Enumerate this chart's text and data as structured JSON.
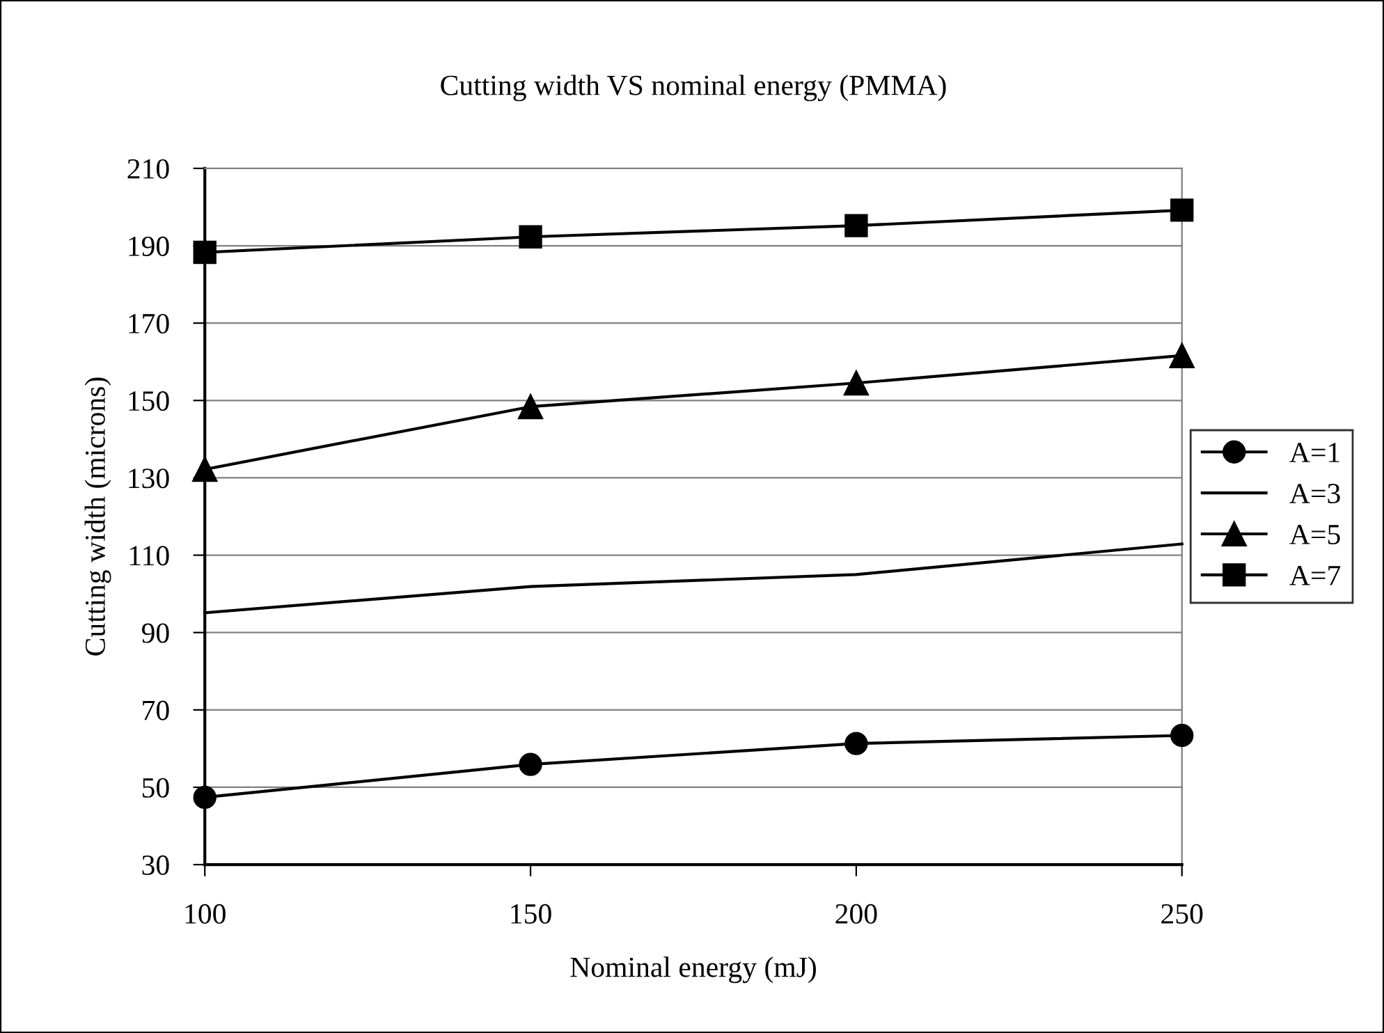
{
  "chart_data": {
    "type": "line",
    "title": "Cutting width VS nominal energy (PMMA)",
    "xlabel": "Nominal energy (mJ)",
    "ylabel": "Cutting width (microns)",
    "x": [
      100,
      150,
      200,
      250
    ],
    "series": [
      {
        "name": "A=1",
        "color": "#000000",
        "marker": "circle",
        "values": [
          47.4,
          55.9,
          61.3,
          63.4
        ]
      },
      {
        "name": "A=3",
        "color": "#000000",
        "marker": "none",
        "values": [
          95.1,
          101.9,
          105.0,
          112.9
        ]
      },
      {
        "name": "A=5",
        "color": "#000000",
        "marker": "triangle",
        "values": [
          132.2,
          148.4,
          154.5,
          161.6
        ]
      },
      {
        "name": "A=7",
        "color": "#000000",
        "marker": "square",
        "values": [
          188.3,
          192.3,
          195.2,
          199.2
        ]
      }
    ],
    "xlim": [
      100,
      250
    ],
    "xticks": [
      100,
      150,
      200,
      250
    ],
    "ylim": [
      30,
      210
    ],
    "yticks": [
      30,
      50,
      70,
      90,
      110,
      130,
      150,
      170,
      190,
      210
    ],
    "grid": "y",
    "legend": "right",
    "line_style": "solid"
  }
}
